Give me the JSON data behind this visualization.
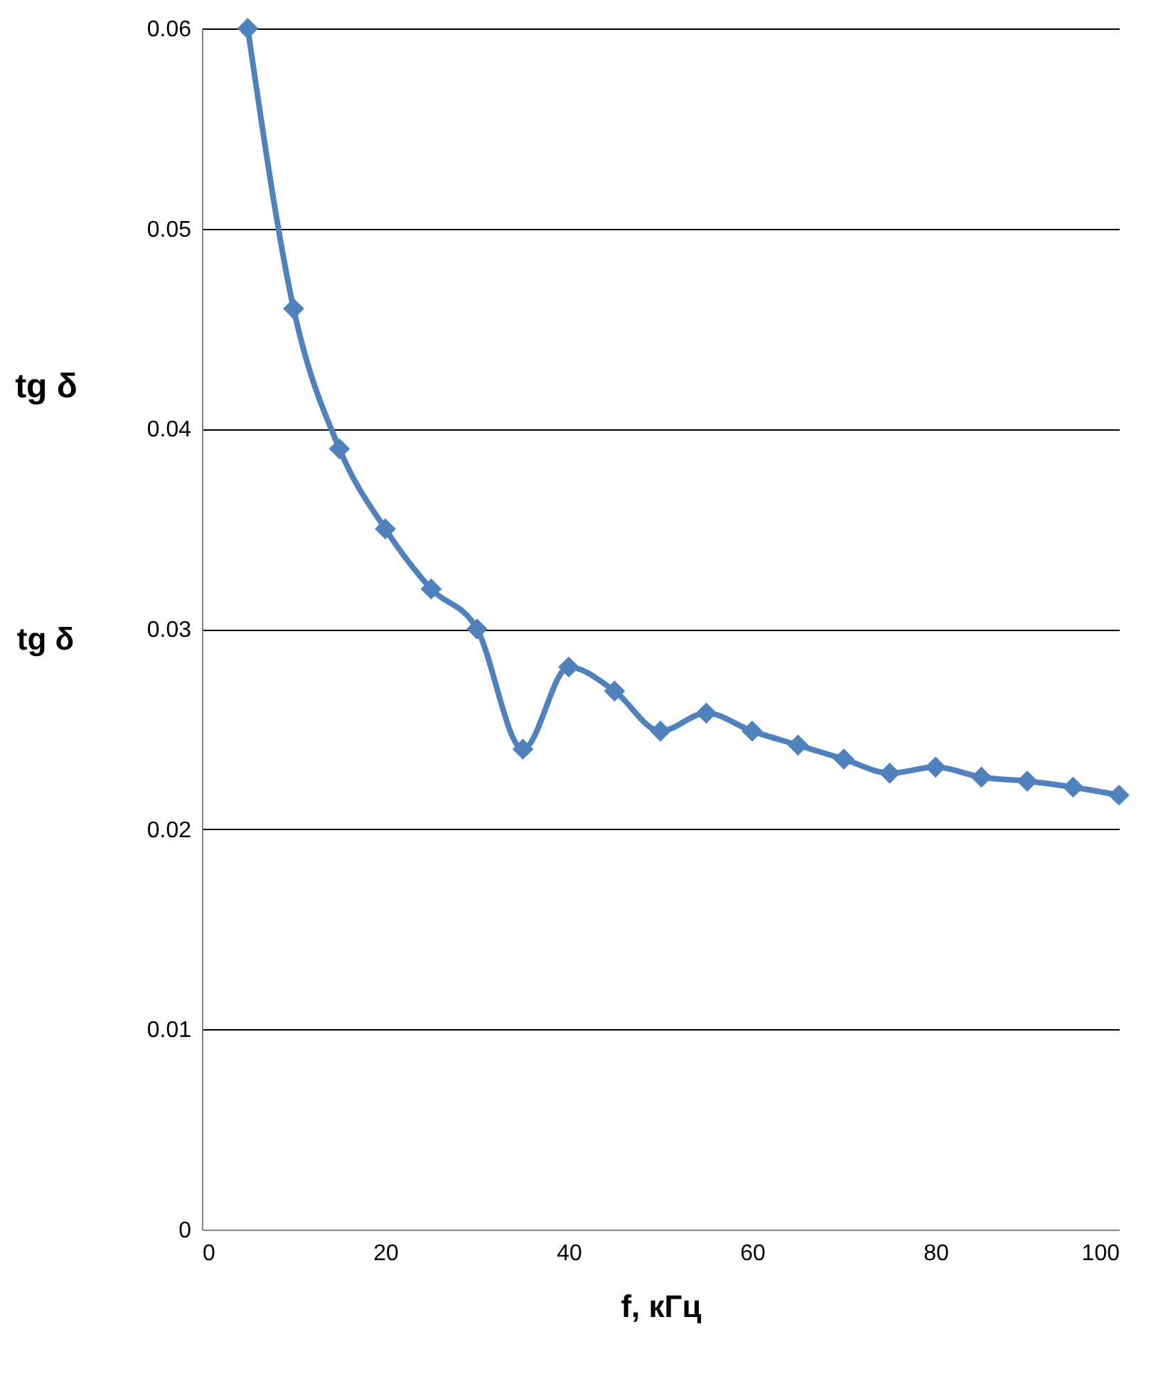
{
  "chart_data": {
    "type": "line",
    "xlabel": "f, кГц",
    "ylabel": "tg δ",
    "annotations": [
      "tg δ"
    ],
    "x": [
      5,
      10,
      15,
      20,
      25,
      30,
      35,
      40,
      45,
      50,
      55,
      60,
      65,
      70,
      75,
      80,
      85,
      90,
      95,
      100
    ],
    "series": [
      {
        "color": "#4f81bd",
        "values": [
          0.06,
          0.046,
          0.039,
          0.035,
          0.032,
          0.03,
          0.024,
          0.0281,
          0.0269,
          0.0249,
          0.0258,
          0.0249,
          0.0242,
          0.0235,
          0.0228,
          0.0231,
          0.0226,
          0.0224,
          0.0221,
          0.0217
        ]
      }
    ],
    "xlim": [
      0,
      100
    ],
    "xticks": [
      0,
      20,
      40,
      60,
      80,
      100
    ],
    "ylim": [
      0,
      0.06
    ],
    "yticks": [
      0,
      0.01,
      0.02,
      0.03,
      0.04,
      0.05,
      0.06
    ],
    "grid": "y",
    "marker": "diamond",
    "line_style": "solid"
  }
}
